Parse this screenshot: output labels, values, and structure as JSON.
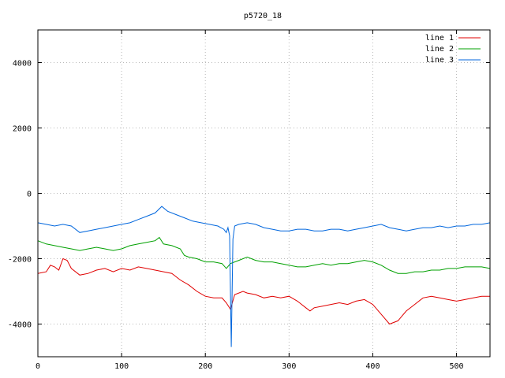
{
  "chart_data": {
    "type": "line",
    "title": "p5720_18",
    "xlabel": "",
    "ylabel": "",
    "xlim": [
      0,
      540
    ],
    "ylim": [
      -5000,
      5000
    ],
    "x_ticks": [
      0,
      100,
      200,
      300,
      400,
      500
    ],
    "y_ticks": [
      -4000,
      -2000,
      0,
      2000,
      4000
    ],
    "grid": true,
    "legend_position": "top-right",
    "series": [
      {
        "name": "line 1",
        "color": "#e00000",
        "points": [
          [
            0,
            -2450
          ],
          [
            10,
            -2400
          ],
          [
            15,
            -2200
          ],
          [
            20,
            -2250
          ],
          [
            25,
            -2350
          ],
          [
            30,
            -2000
          ],
          [
            35,
            -2050
          ],
          [
            40,
            -2300
          ],
          [
            50,
            -2500
          ],
          [
            60,
            -2450
          ],
          [
            70,
            -2350
          ],
          [
            80,
            -2300
          ],
          [
            90,
            -2400
          ],
          [
            100,
            -2300
          ],
          [
            110,
            -2350
          ],
          [
            120,
            -2250
          ],
          [
            130,
            -2300
          ],
          [
            140,
            -2350
          ],
          [
            150,
            -2400
          ],
          [
            160,
            -2450
          ],
          [
            170,
            -2650
          ],
          [
            180,
            -2800
          ],
          [
            190,
            -3000
          ],
          [
            200,
            -3150
          ],
          [
            210,
            -3200
          ],
          [
            220,
            -3200
          ],
          [
            225,
            -3350
          ],
          [
            230,
            -3550
          ],
          [
            235,
            -3100
          ],
          [
            245,
            -3000
          ],
          [
            250,
            -3050
          ],
          [
            260,
            -3100
          ],
          [
            270,
            -3200
          ],
          [
            280,
            -3150
          ],
          [
            290,
            -3200
          ],
          [
            300,
            -3150
          ],
          [
            310,
            -3300
          ],
          [
            320,
            -3500
          ],
          [
            325,
            -3600
          ],
          [
            330,
            -3500
          ],
          [
            340,
            -3450
          ],
          [
            350,
            -3400
          ],
          [
            360,
            -3350
          ],
          [
            370,
            -3400
          ],
          [
            380,
            -3300
          ],
          [
            390,
            -3250
          ],
          [
            400,
            -3400
          ],
          [
            410,
            -3700
          ],
          [
            420,
            -4000
          ],
          [
            430,
            -3900
          ],
          [
            440,
            -3600
          ],
          [
            450,
            -3400
          ],
          [
            460,
            -3200
          ],
          [
            470,
            -3150
          ],
          [
            480,
            -3200
          ],
          [
            490,
            -3250
          ],
          [
            500,
            -3300
          ],
          [
            510,
            -3250
          ],
          [
            520,
            -3200
          ],
          [
            530,
            -3150
          ],
          [
            540,
            -3150
          ]
        ]
      },
      {
        "name": "line 2",
        "color": "#00a000",
        "points": [
          [
            0,
            -1450
          ],
          [
            10,
            -1550
          ],
          [
            20,
            -1600
          ],
          [
            30,
            -1650
          ],
          [
            40,
            -1700
          ],
          [
            50,
            -1750
          ],
          [
            60,
            -1700
          ],
          [
            70,
            -1650
          ],
          [
            80,
            -1700
          ],
          [
            90,
            -1750
          ],
          [
            100,
            -1700
          ],
          [
            110,
            -1600
          ],
          [
            120,
            -1550
          ],
          [
            130,
            -1500
          ],
          [
            140,
            -1450
          ],
          [
            145,
            -1350
          ],
          [
            150,
            -1550
          ],
          [
            160,
            -1600
          ],
          [
            170,
            -1700
          ],
          [
            175,
            -1900
          ],
          [
            180,
            -1950
          ],
          [
            190,
            -2000
          ],
          [
            200,
            -2100
          ],
          [
            210,
            -2100
          ],
          [
            220,
            -2150
          ],
          [
            225,
            -2300
          ],
          [
            230,
            -2150
          ],
          [
            240,
            -2050
          ],
          [
            250,
            -1950
          ],
          [
            260,
            -2050
          ],
          [
            270,
            -2100
          ],
          [
            280,
            -2100
          ],
          [
            290,
            -2150
          ],
          [
            300,
            -2200
          ],
          [
            310,
            -2250
          ],
          [
            320,
            -2250
          ],
          [
            330,
            -2200
          ],
          [
            340,
            -2150
          ],
          [
            350,
            -2200
          ],
          [
            360,
            -2150
          ],
          [
            370,
            -2150
          ],
          [
            380,
            -2100
          ],
          [
            390,
            -2050
          ],
          [
            400,
            -2100
          ],
          [
            410,
            -2200
          ],
          [
            420,
            -2350
          ],
          [
            430,
            -2450
          ],
          [
            440,
            -2450
          ],
          [
            450,
            -2400
          ],
          [
            460,
            -2400
          ],
          [
            470,
            -2350
          ],
          [
            480,
            -2350
          ],
          [
            490,
            -2300
          ],
          [
            500,
            -2300
          ],
          [
            510,
            -2250
          ],
          [
            520,
            -2250
          ],
          [
            530,
            -2250
          ],
          [
            540,
            -2300
          ]
        ]
      },
      {
        "name": "line 3",
        "color": "#0066dd",
        "points": [
          [
            0,
            -900
          ],
          [
            10,
            -950
          ],
          [
            20,
            -1000
          ],
          [
            30,
            -950
          ],
          [
            40,
            -1000
          ],
          [
            50,
            -1200
          ],
          [
            60,
            -1150
          ],
          [
            70,
            -1100
          ],
          [
            80,
            -1050
          ],
          [
            90,
            -1000
          ],
          [
            100,
            -950
          ],
          [
            110,
            -900
          ],
          [
            120,
            -800
          ],
          [
            130,
            -700
          ],
          [
            140,
            -600
          ],
          [
            148,
            -400
          ],
          [
            155,
            -550
          ],
          [
            165,
            -650
          ],
          [
            175,
            -750
          ],
          [
            185,
            -850
          ],
          [
            195,
            -900
          ],
          [
            205,
            -950
          ],
          [
            215,
            -1000
          ],
          [
            222,
            -1100
          ],
          [
            225,
            -1200
          ],
          [
            227,
            -1050
          ],
          [
            229,
            -1300
          ],
          [
            231,
            -4700
          ],
          [
            233,
            -1400
          ],
          [
            235,
            -1000
          ],
          [
            240,
            -950
          ],
          [
            250,
            -900
          ],
          [
            260,
            -950
          ],
          [
            270,
            -1050
          ],
          [
            280,
            -1100
          ],
          [
            290,
            -1150
          ],
          [
            300,
            -1150
          ],
          [
            310,
            -1100
          ],
          [
            320,
            -1100
          ],
          [
            330,
            -1150
          ],
          [
            340,
            -1150
          ],
          [
            350,
            -1100
          ],
          [
            360,
            -1100
          ],
          [
            370,
            -1150
          ],
          [
            380,
            -1100
          ],
          [
            390,
            -1050
          ],
          [
            400,
            -1000
          ],
          [
            410,
            -950
          ],
          [
            420,
            -1050
          ],
          [
            430,
            -1100
          ],
          [
            440,
            -1150
          ],
          [
            450,
            -1100
          ],
          [
            460,
            -1050
          ],
          [
            470,
            -1050
          ],
          [
            480,
            -1000
          ],
          [
            490,
            -1050
          ],
          [
            500,
            -1000
          ],
          [
            510,
            -1000
          ],
          [
            520,
            -950
          ],
          [
            530,
            -950
          ],
          [
            540,
            -900
          ]
        ]
      }
    ]
  }
}
